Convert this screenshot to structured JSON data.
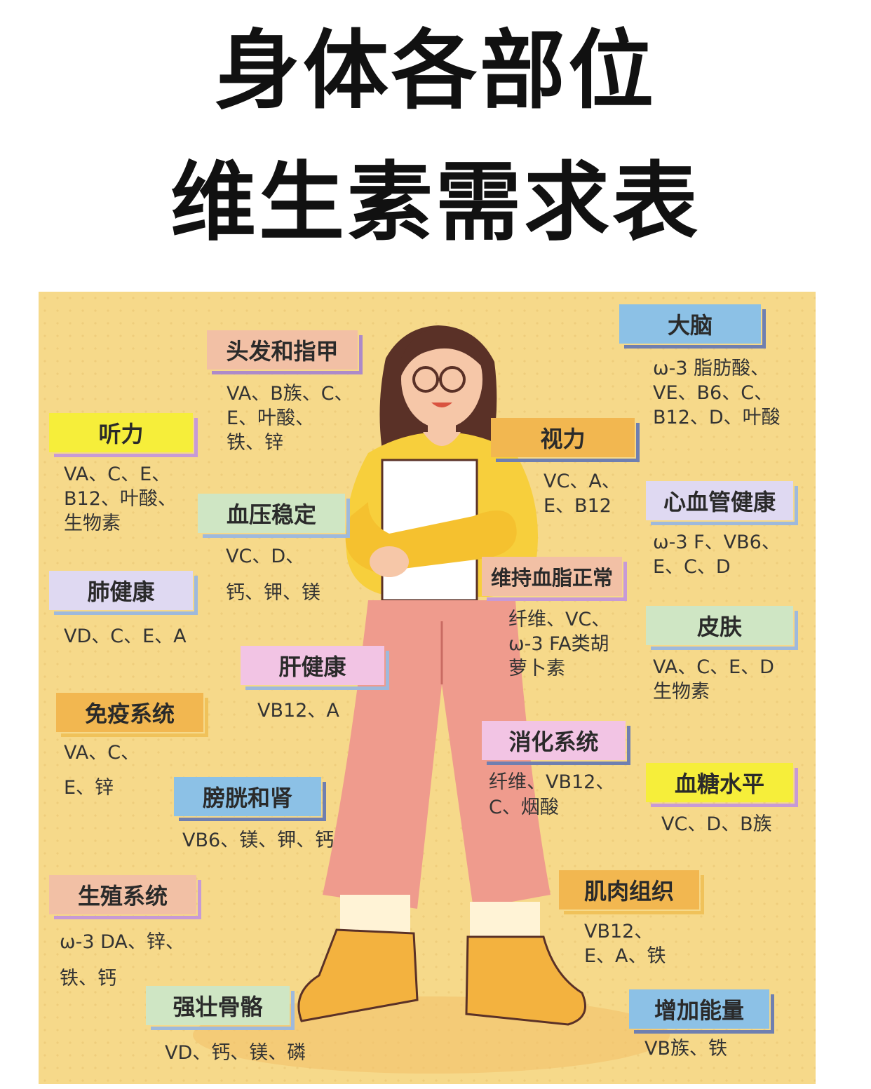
{
  "title": {
    "line1": "身体各部位",
    "line2": "维生素需求表"
  },
  "entries": {
    "brain": {
      "label": "大脑",
      "l1": "ω-3 脂肪酸、",
      "l2": "VE、B6、C、",
      "l3": "B12、D、叶酸"
    },
    "hair": {
      "label": "头发和指甲",
      "l1": "VA、B族、C、",
      "l2": "E、叶酸、",
      "l3": "铁、锌"
    },
    "hearing": {
      "label": "听力",
      "l1": "VA、C、E、",
      "l2": "B12、叶酸、",
      "l3": "生物素"
    },
    "vision": {
      "label": "视力",
      "l1": "VC、A、",
      "l2": "E、B12"
    },
    "heart": {
      "label": "心血管健康",
      "l1": "ω-3 F、VB6、",
      "l2": "E、C、D"
    },
    "bp": {
      "label": "血压稳定",
      "l1": "VC、D、",
      "l2": "钙、钾、镁"
    },
    "lipid": {
      "label": "维持血脂正常",
      "l1": "纤维、VC、",
      "l2": "ω-3 FA类胡",
      "l3": "萝卜素"
    },
    "lung": {
      "label": "肺健康",
      "l1": "VD、C、E、A"
    },
    "skin": {
      "label": "皮肤",
      "l1": "VA、C、E、D",
      "l2": "生物素"
    },
    "liver": {
      "label": "肝健康",
      "l1": "VB12、A"
    },
    "immune": {
      "label": "免疫系统",
      "l1": "VA、C、",
      "l2": "E、锌"
    },
    "digest": {
      "label": "消化系统",
      "l1": "纤维、VB12、",
      "l2": "C、烟酸"
    },
    "sugar": {
      "label": "血糖水平",
      "l1": "VC、D、B族"
    },
    "bladder": {
      "label": "膀胱和肾",
      "l1": "VB6、镁、钾、钙"
    },
    "muscle": {
      "label": "肌肉组织",
      "l1": "VB12、",
      "l2": "E、A、铁"
    },
    "repro": {
      "label": "生殖系统",
      "l1": "ω-3 DA、锌、",
      "l2": "铁、钙"
    },
    "bone": {
      "label": "强壮骨骼",
      "l1": "VD、钙、镁、磷"
    },
    "energy": {
      "label": "增加能量",
      "l1": "VB族、铁"
    }
  },
  "colors": {
    "background": "#f6d98a",
    "blue": "#8cc1e6",
    "peach": "#f2c0a5",
    "yellow": "#f6ee3a",
    "orange": "#f2b750",
    "lavender": "#dfd9f2",
    "green": "#cfe6c4",
    "pink": "#f2c4e4",
    "sweater": "#f7cf3c",
    "pants": "#ef9b8d",
    "shoes": "#f3b23f",
    "hair": "#5a3127"
  }
}
